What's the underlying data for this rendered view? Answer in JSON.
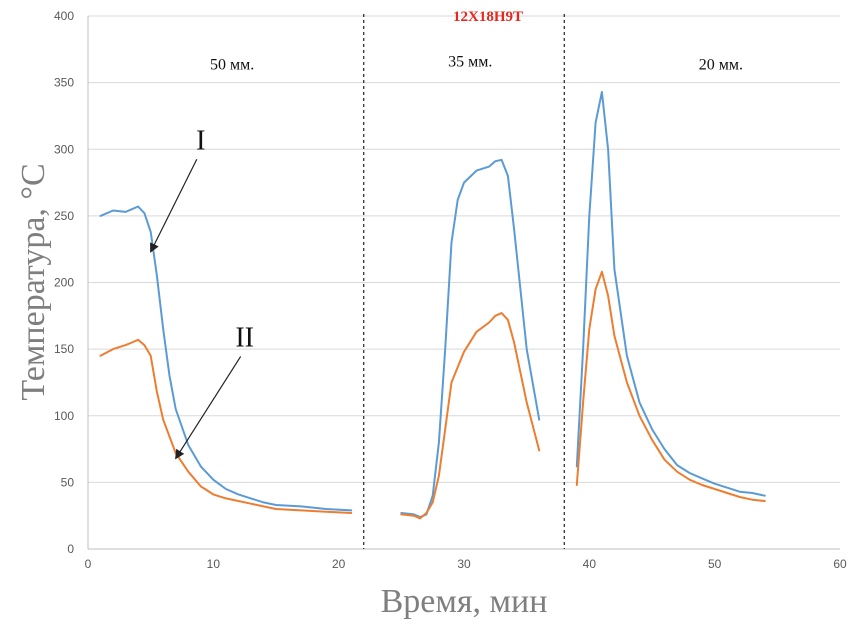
{
  "chart_data": {
    "type": "line",
    "title": "12Х18Н9Т",
    "xlabel": "Время, мин",
    "ylabel": "Температура, °С",
    "xlim": [
      0,
      60
    ],
    "ylim": [
      0,
      400
    ],
    "xticks": [
      0,
      10,
      20,
      30,
      40,
      50,
      60
    ],
    "yticks": [
      0,
      50,
      100,
      150,
      200,
      250,
      300,
      350,
      400
    ],
    "grid": "horizontal",
    "dividers": [
      22,
      38
    ],
    "section_labels": [
      {
        "text": "50 мм.",
        "x": 11.5,
        "y": 360
      },
      {
        "text": "35 мм.",
        "x": 30.5,
        "y": 362
      },
      {
        "text": "20 мм.",
        "x": 50.5,
        "y": 360
      }
    ],
    "annotations": [
      {
        "text": "I",
        "at": [
          9.0,
          300
        ],
        "points_to": [
          5.0,
          223
        ]
      },
      {
        "text": "II",
        "at": [
          12.5,
          152
        ],
        "points_to": [
          7.0,
          68
        ]
      }
    ],
    "series": [
      {
        "name": "I",
        "color": "#5b9bd5",
        "segments": [
          [
            [
              1,
              250
            ],
            [
              2,
              254
            ],
            [
              3,
              253
            ],
            [
              3.5,
              255
            ],
            [
              4,
              257
            ],
            [
              4.5,
              252
            ],
            [
              5,
              238
            ],
            [
              5.5,
              205
            ],
            [
              6,
              165
            ],
            [
              6.5,
              130
            ],
            [
              7,
              105
            ],
            [
              8,
              78
            ],
            [
              9,
              62
            ],
            [
              10,
              52
            ],
            [
              11,
              45
            ],
            [
              12,
              41
            ],
            [
              13,
              38
            ],
            [
              14,
              35
            ],
            [
              15,
              33
            ],
            [
              17,
              32
            ],
            [
              19,
              30
            ],
            [
              21,
              29
            ]
          ],
          [
            [
              25,
              27
            ],
            [
              26,
              26
            ],
            [
              26.5,
              24
            ],
            [
              27,
              26
            ],
            [
              27.5,
              40
            ],
            [
              28,
              80
            ],
            [
              28.5,
              150
            ],
            [
              29,
              230
            ],
            [
              29.5,
              262
            ],
            [
              30,
              275
            ],
            [
              31,
              284
            ],
            [
              32,
              287
            ],
            [
              32.5,
              291
            ],
            [
              33,
              292
            ],
            [
              33.5,
              280
            ],
            [
              34,
              240
            ],
            [
              35,
              150
            ],
            [
              36,
              97
            ]
          ],
          [
            [
              39,
              62
            ],
            [
              39.5,
              150
            ],
            [
              40,
              250
            ],
            [
              40.5,
              320
            ],
            [
              41,
              343
            ],
            [
              41.5,
              300
            ],
            [
              42,
              210
            ],
            [
              43,
              145
            ],
            [
              44,
              110
            ],
            [
              45,
              90
            ],
            [
              46,
              75
            ],
            [
              47,
              63
            ],
            [
              48,
              57
            ],
            [
              49,
              53
            ],
            [
              50,
              49
            ],
            [
              51,
              46
            ],
            [
              52,
              43
            ],
            [
              53,
              42
            ],
            [
              54,
              40
            ]
          ]
        ]
      },
      {
        "name": "II",
        "color": "#ed7d31",
        "segments": [
          [
            [
              1,
              145
            ],
            [
              2,
              150
            ],
            [
              3,
              153
            ],
            [
              3.5,
              155
            ],
            [
              4,
              157
            ],
            [
              4.5,
              153
            ],
            [
              5,
              145
            ],
            [
              5.5,
              118
            ],
            [
              6,
              97
            ],
            [
              7,
              72
            ],
            [
              8,
              58
            ],
            [
              9,
              47
            ],
            [
              10,
              41
            ],
            [
              11,
              38
            ],
            [
              12,
              36
            ],
            [
              13,
              34
            ],
            [
              14,
              32
            ],
            [
              15,
              30
            ],
            [
              17,
              29
            ],
            [
              19,
              28
            ],
            [
              21,
              27
            ]
          ],
          [
            [
              25,
              26
            ],
            [
              26,
              25
            ],
            [
              26.5,
              23
            ],
            [
              27,
              27
            ],
            [
              27.5,
              35
            ],
            [
              28,
              55
            ],
            [
              28.5,
              90
            ],
            [
              29,
              125
            ],
            [
              30,
              148
            ],
            [
              31,
              163
            ],
            [
              32,
              170
            ],
            [
              32.5,
              175
            ],
            [
              33,
              177
            ],
            [
              33.5,
              172
            ],
            [
              34,
              155
            ],
            [
              35,
              110
            ],
            [
              36,
              74
            ]
          ],
          [
            [
              39,
              48
            ],
            [
              39.5,
              110
            ],
            [
              40,
              165
            ],
            [
              40.5,
              195
            ],
            [
              41,
              208
            ],
            [
              41.5,
              190
            ],
            [
              42,
              160
            ],
            [
              43,
              125
            ],
            [
              44,
              100
            ],
            [
              45,
              82
            ],
            [
              46,
              67
            ],
            [
              47,
              58
            ],
            [
              48,
              52
            ],
            [
              49,
              48
            ],
            [
              50,
              45
            ],
            [
              51,
              42
            ],
            [
              52,
              39
            ],
            [
              53,
              37
            ],
            [
              54,
              36
            ]
          ]
        ]
      }
    ]
  }
}
